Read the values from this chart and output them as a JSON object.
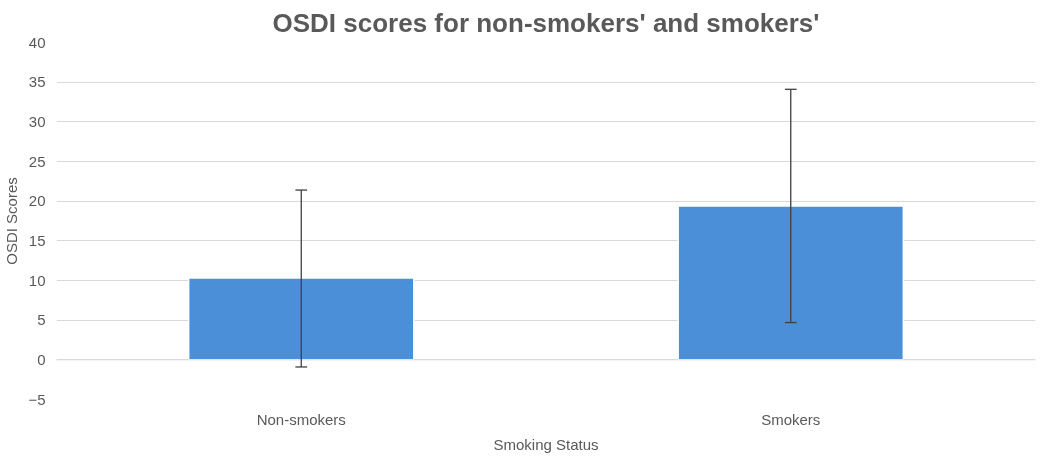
{
  "chart_data": {
    "type": "bar",
    "title": "OSDI scores for non-smokers' and smokers'",
    "xlabel": "Smoking Status",
    "ylabel": "OSDI Scores",
    "categories": [
      "Non-smokers",
      "Smokers"
    ],
    "values": [
      10.3,
      19.4
    ],
    "errors": [
      [
        -0.9,
        21.4
      ],
      [
        4.7,
        34.1
      ]
    ],
    "color": "#4a8fd8",
    "ylim": [
      -5,
      40
    ],
    "yticks": [
      -5,
      0,
      5,
      10,
      15,
      20,
      25,
      30,
      35,
      40
    ],
    "grid": "y"
  }
}
